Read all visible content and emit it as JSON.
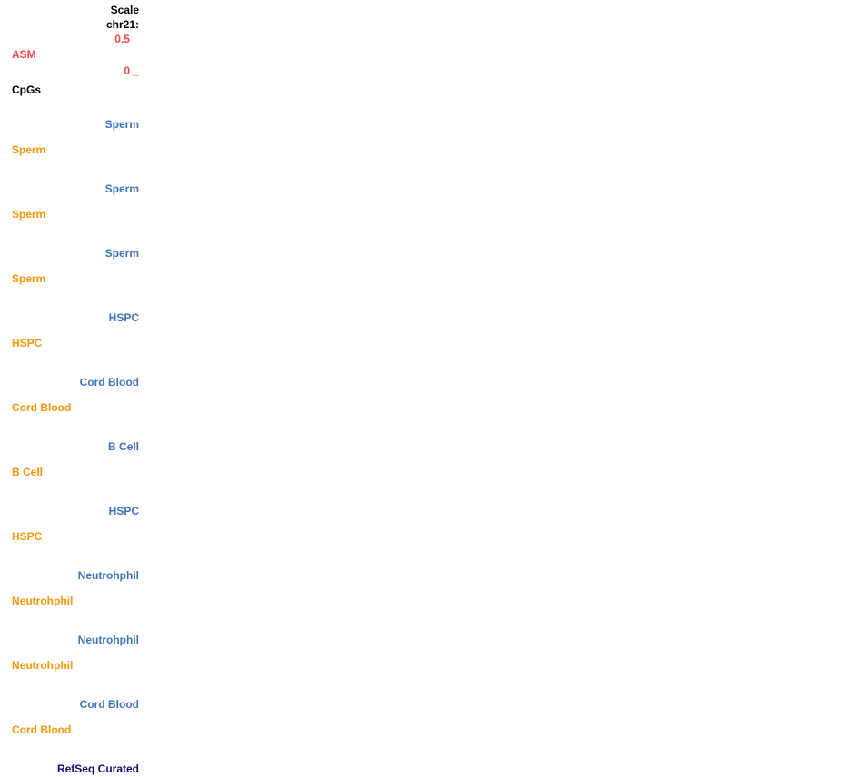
{
  "ruler": {
    "scale_label": "Scale",
    "position_label": "chr21:"
  },
  "asm_track": {
    "label": "ASM",
    "max_value": "0.5 _",
    "min_value": "0 _"
  },
  "cpg_track": {
    "label": "CpGs"
  },
  "sample_tracks": [
    {
      "name": "Sperm"
    },
    {
      "name": "Sperm"
    },
    {
      "name": "Sperm"
    },
    {
      "name": "HSPC"
    },
    {
      "name": "Cord Blood"
    },
    {
      "name": "B Cell"
    },
    {
      "name": "HSPC"
    },
    {
      "name": "Neutrohphil"
    },
    {
      "name": "Neutrohphil"
    },
    {
      "name": "Cord Blood"
    }
  ],
  "refseq_track": {
    "label": "RefSeq Curated"
  },
  "colors": {
    "text_black": "#000000",
    "value_red": "#F94444",
    "track_blue": "#3B72C1",
    "track_orange": "#FB9503",
    "refseq_navy": "#0C0C82"
  }
}
